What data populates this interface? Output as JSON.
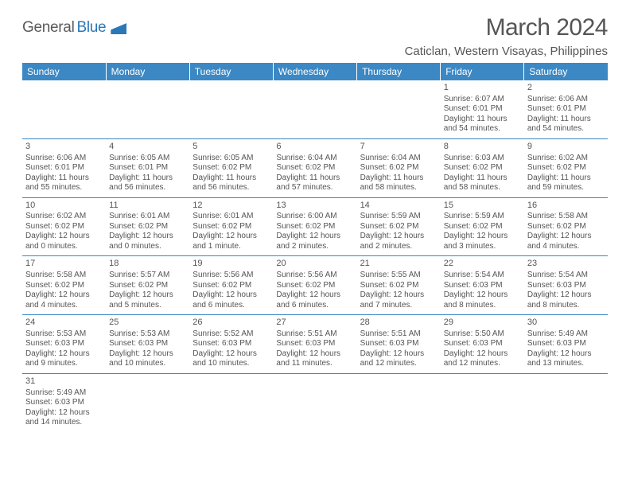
{
  "logo": {
    "text1": "General",
    "text2": "Blue"
  },
  "title": "March 2024",
  "location": "Caticlan, Western Visayas, Philippines",
  "colors": {
    "header_bg": "#3b88c4",
    "header_text": "#ffffff",
    "border": "#3b88c4",
    "body_text": "#555555",
    "logo_accent": "#2a78b8"
  },
  "fonts": {
    "title_size": 30,
    "location_size": 15,
    "header_size": 12,
    "cell_size": 10
  },
  "weekdays": [
    "Sunday",
    "Monday",
    "Tuesday",
    "Wednesday",
    "Thursday",
    "Friday",
    "Saturday"
  ],
  "weeks": [
    [
      null,
      null,
      null,
      null,
      null,
      {
        "n": "1",
        "sr": "Sunrise: 6:07 AM",
        "ss": "Sunset: 6:01 PM",
        "d1": "Daylight: 11 hours",
        "d2": "and 54 minutes."
      },
      {
        "n": "2",
        "sr": "Sunrise: 6:06 AM",
        "ss": "Sunset: 6:01 PM",
        "d1": "Daylight: 11 hours",
        "d2": "and 54 minutes."
      }
    ],
    [
      {
        "n": "3",
        "sr": "Sunrise: 6:06 AM",
        "ss": "Sunset: 6:01 PM",
        "d1": "Daylight: 11 hours",
        "d2": "and 55 minutes."
      },
      {
        "n": "4",
        "sr": "Sunrise: 6:05 AM",
        "ss": "Sunset: 6:01 PM",
        "d1": "Daylight: 11 hours",
        "d2": "and 56 minutes."
      },
      {
        "n": "5",
        "sr": "Sunrise: 6:05 AM",
        "ss": "Sunset: 6:02 PM",
        "d1": "Daylight: 11 hours",
        "d2": "and 56 minutes."
      },
      {
        "n": "6",
        "sr": "Sunrise: 6:04 AM",
        "ss": "Sunset: 6:02 PM",
        "d1": "Daylight: 11 hours",
        "d2": "and 57 minutes."
      },
      {
        "n": "7",
        "sr": "Sunrise: 6:04 AM",
        "ss": "Sunset: 6:02 PM",
        "d1": "Daylight: 11 hours",
        "d2": "and 58 minutes."
      },
      {
        "n": "8",
        "sr": "Sunrise: 6:03 AM",
        "ss": "Sunset: 6:02 PM",
        "d1": "Daylight: 11 hours",
        "d2": "and 58 minutes."
      },
      {
        "n": "9",
        "sr": "Sunrise: 6:02 AM",
        "ss": "Sunset: 6:02 PM",
        "d1": "Daylight: 11 hours",
        "d2": "and 59 minutes."
      }
    ],
    [
      {
        "n": "10",
        "sr": "Sunrise: 6:02 AM",
        "ss": "Sunset: 6:02 PM",
        "d1": "Daylight: 12 hours",
        "d2": "and 0 minutes."
      },
      {
        "n": "11",
        "sr": "Sunrise: 6:01 AM",
        "ss": "Sunset: 6:02 PM",
        "d1": "Daylight: 12 hours",
        "d2": "and 0 minutes."
      },
      {
        "n": "12",
        "sr": "Sunrise: 6:01 AM",
        "ss": "Sunset: 6:02 PM",
        "d1": "Daylight: 12 hours",
        "d2": "and 1 minute."
      },
      {
        "n": "13",
        "sr": "Sunrise: 6:00 AM",
        "ss": "Sunset: 6:02 PM",
        "d1": "Daylight: 12 hours",
        "d2": "and 2 minutes."
      },
      {
        "n": "14",
        "sr": "Sunrise: 5:59 AM",
        "ss": "Sunset: 6:02 PM",
        "d1": "Daylight: 12 hours",
        "d2": "and 2 minutes."
      },
      {
        "n": "15",
        "sr": "Sunrise: 5:59 AM",
        "ss": "Sunset: 6:02 PM",
        "d1": "Daylight: 12 hours",
        "d2": "and 3 minutes."
      },
      {
        "n": "16",
        "sr": "Sunrise: 5:58 AM",
        "ss": "Sunset: 6:02 PM",
        "d1": "Daylight: 12 hours",
        "d2": "and 4 minutes."
      }
    ],
    [
      {
        "n": "17",
        "sr": "Sunrise: 5:58 AM",
        "ss": "Sunset: 6:02 PM",
        "d1": "Daylight: 12 hours",
        "d2": "and 4 minutes."
      },
      {
        "n": "18",
        "sr": "Sunrise: 5:57 AM",
        "ss": "Sunset: 6:02 PM",
        "d1": "Daylight: 12 hours",
        "d2": "and 5 minutes."
      },
      {
        "n": "19",
        "sr": "Sunrise: 5:56 AM",
        "ss": "Sunset: 6:02 PM",
        "d1": "Daylight: 12 hours",
        "d2": "and 6 minutes."
      },
      {
        "n": "20",
        "sr": "Sunrise: 5:56 AM",
        "ss": "Sunset: 6:02 PM",
        "d1": "Daylight: 12 hours",
        "d2": "and 6 minutes."
      },
      {
        "n": "21",
        "sr": "Sunrise: 5:55 AM",
        "ss": "Sunset: 6:02 PM",
        "d1": "Daylight: 12 hours",
        "d2": "and 7 minutes."
      },
      {
        "n": "22",
        "sr": "Sunrise: 5:54 AM",
        "ss": "Sunset: 6:03 PM",
        "d1": "Daylight: 12 hours",
        "d2": "and 8 minutes."
      },
      {
        "n": "23",
        "sr": "Sunrise: 5:54 AM",
        "ss": "Sunset: 6:03 PM",
        "d1": "Daylight: 12 hours",
        "d2": "and 8 minutes."
      }
    ],
    [
      {
        "n": "24",
        "sr": "Sunrise: 5:53 AM",
        "ss": "Sunset: 6:03 PM",
        "d1": "Daylight: 12 hours",
        "d2": "and 9 minutes."
      },
      {
        "n": "25",
        "sr": "Sunrise: 5:53 AM",
        "ss": "Sunset: 6:03 PM",
        "d1": "Daylight: 12 hours",
        "d2": "and 10 minutes."
      },
      {
        "n": "26",
        "sr": "Sunrise: 5:52 AM",
        "ss": "Sunset: 6:03 PM",
        "d1": "Daylight: 12 hours",
        "d2": "and 10 minutes."
      },
      {
        "n": "27",
        "sr": "Sunrise: 5:51 AM",
        "ss": "Sunset: 6:03 PM",
        "d1": "Daylight: 12 hours",
        "d2": "and 11 minutes."
      },
      {
        "n": "28",
        "sr": "Sunrise: 5:51 AM",
        "ss": "Sunset: 6:03 PM",
        "d1": "Daylight: 12 hours",
        "d2": "and 12 minutes."
      },
      {
        "n": "29",
        "sr": "Sunrise: 5:50 AM",
        "ss": "Sunset: 6:03 PM",
        "d1": "Daylight: 12 hours",
        "d2": "and 12 minutes."
      },
      {
        "n": "30",
        "sr": "Sunrise: 5:49 AM",
        "ss": "Sunset: 6:03 PM",
        "d1": "Daylight: 12 hours",
        "d2": "and 13 minutes."
      }
    ],
    [
      {
        "n": "31",
        "sr": "Sunrise: 5:49 AM",
        "ss": "Sunset: 6:03 PM",
        "d1": "Daylight: 12 hours",
        "d2": "and 14 minutes."
      },
      null,
      null,
      null,
      null,
      null,
      null
    ]
  ]
}
